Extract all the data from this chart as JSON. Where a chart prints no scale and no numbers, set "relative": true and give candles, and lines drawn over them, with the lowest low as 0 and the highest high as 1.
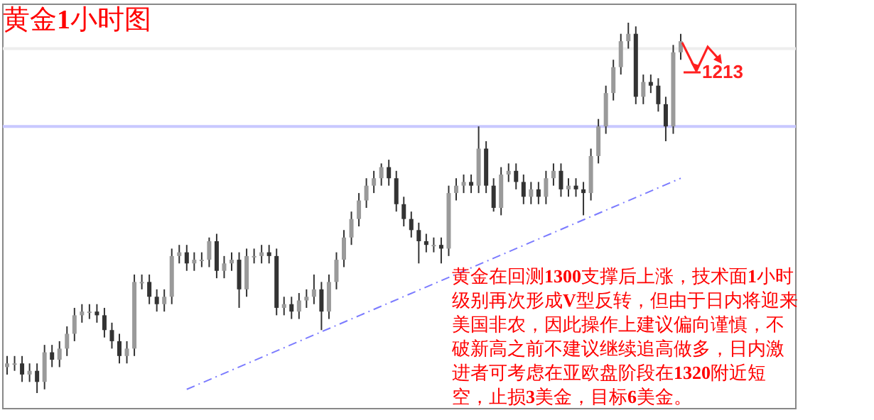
{
  "chart_data": {
    "type": "candlestick",
    "title": "黄金**1**小时图",
    "relative": true,
    "categories": [
      null,
      null,
      null,
      null,
      null,
      null,
      null,
      null,
      null,
      null,
      null,
      null,
      null,
      null,
      null,
      null,
      null,
      null,
      null,
      null,
      null,
      null,
      null,
      null,
      null,
      null,
      null,
      null,
      null,
      null,
      null,
      null,
      null,
      null,
      null,
      null,
      null,
      null,
      null,
      null,
      null,
      null,
      null,
      null,
      null,
      null,
      null,
      null,
      null,
      null,
      null,
      null,
      null,
      null,
      null,
      null,
      null,
      null,
      null,
      null,
      null,
      null,
      null,
      null,
      null,
      null,
      null,
      null,
      null,
      null,
      null,
      null,
      null,
      null,
      null,
      null,
      null,
      null,
      null,
      null,
      null,
      null,
      null,
      null,
      null,
      null,
      null,
      null,
      null,
      null,
      null
    ],
    "ohlc": [
      [
        0.07,
        0.1,
        0.05,
        0.08
      ],
      [
        0.08,
        0.1,
        0.06,
        0.08
      ],
      [
        0.08,
        0.1,
        0.03,
        0.05
      ],
      [
        0.05,
        0.08,
        0.03,
        0.06
      ],
      [
        0.06,
        0.08,
        0,
        0.03
      ],
      [
        0.03,
        0.13,
        0.01,
        0.11
      ],
      [
        0.11,
        0.13,
        0.07,
        0.09
      ],
      [
        0.09,
        0.14,
        0.07,
        0.12
      ],
      [
        0.12,
        0.18,
        0.1,
        0.16
      ],
      [
        0.16,
        0.23,
        0.14,
        0.21
      ],
      [
        0.21,
        0.24,
        0.19,
        0.22
      ],
      [
        0.22,
        0.24,
        0.2,
        0.22
      ],
      [
        0.22,
        0.24,
        0.19,
        0.21
      ],
      [
        0.21,
        0.23,
        0.15,
        0.17
      ],
      [
        0.17,
        0.19,
        0.12,
        0.14
      ],
      [
        0.14,
        0.16,
        0.08,
        0.1
      ],
      [
        0.1,
        0.14,
        0.08,
        0.12
      ],
      [
        0.12,
        0.32,
        0.1,
        0.3
      ],
      [
        0.3,
        0.32,
        0.28,
        0.3
      ],
      [
        0.3,
        0.32,
        0.24,
        0.26
      ],
      [
        0.26,
        0.28,
        0.22,
        0.24
      ],
      [
        0.24,
        0.28,
        0.22,
        0.26
      ],
      [
        0.26,
        0.39,
        0.24,
        0.37
      ],
      [
        0.37,
        0.4,
        0.35,
        0.38
      ],
      [
        0.38,
        0.4,
        0.33,
        0.35
      ],
      [
        0.35,
        0.38,
        0.33,
        0.36
      ],
      [
        0.36,
        0.38,
        0.34,
        0.36
      ],
      [
        0.36,
        0.42,
        0.34,
        0.41
      ],
      [
        0.41,
        0.43,
        0.31,
        0.33
      ],
      [
        0.33,
        0.37,
        0.31,
        0.35
      ],
      [
        0.35,
        0.38,
        0.33,
        0.36
      ],
      [
        0.36,
        0.38,
        0.23,
        0.28
      ],
      [
        0.28,
        0.39,
        0.26,
        0.37
      ],
      [
        0.37,
        0.39,
        0.35,
        0.37
      ],
      [
        0.37,
        0.4,
        0.35,
        0.38
      ],
      [
        0.38,
        0.4,
        0.35,
        0.37
      ],
      [
        0.37,
        0.39,
        0.21,
        0.23
      ],
      [
        0.23,
        0.26,
        0.21,
        0.24
      ],
      [
        0.24,
        0.26,
        0.2,
        0.22
      ],
      [
        0.22,
        0.27,
        0.2,
        0.25
      ],
      [
        0.25,
        0.28,
        0.23,
        0.26
      ],
      [
        0.26,
        0.32,
        0.24,
        0.28
      ],
      [
        0.28,
        0.3,
        0.17,
        0.22
      ],
      [
        0.22,
        0.32,
        0.2,
        0.3
      ],
      [
        0.3,
        0.38,
        0.28,
        0.36
      ],
      [
        0.36,
        0.44,
        0.34,
        0.42
      ],
      [
        0.42,
        0.49,
        0.4,
        0.47
      ],
      [
        0.47,
        0.54,
        0.45,
        0.52
      ],
      [
        0.52,
        0.58,
        0.5,
        0.56
      ],
      [
        0.56,
        0.6,
        0.54,
        0.58
      ],
      [
        0.58,
        0.62,
        0.56,
        0.61
      ],
      [
        0.61,
        0.63,
        0.56,
        0.58
      ],
      [
        0.58,
        0.6,
        0.49,
        0.51
      ],
      [
        0.51,
        0.53,
        0.45,
        0.47
      ],
      [
        0.47,
        0.49,
        0.42,
        0.44
      ],
      [
        0.44,
        0.46,
        0.35,
        0.41
      ],
      [
        0.41,
        0.43,
        0.38,
        0.4
      ],
      [
        0.4,
        0.42,
        0.38,
        0.4
      ],
      [
        0.4,
        0.42,
        0.35,
        0.39
      ],
      [
        0.39,
        0.56,
        0.37,
        0.54
      ],
      [
        0.54,
        0.58,
        0.52,
        0.56
      ],
      [
        0.56,
        0.59,
        0.54,
        0.57
      ],
      [
        0.57,
        0.59,
        0.54,
        0.56
      ],
      [
        0.56,
        0.72,
        0.54,
        0.66
      ],
      [
        0.66,
        0.68,
        0.54,
        0.56
      ],
      [
        0.56,
        0.58,
        0.49,
        0.5
      ],
      [
        0.5,
        0.61,
        0.48,
        0.59
      ],
      [
        0.59,
        0.62,
        0.57,
        0.6
      ],
      [
        0.6,
        0.62,
        0.55,
        0.57
      ],
      [
        0.57,
        0.59,
        0.51,
        0.53
      ],
      [
        0.53,
        0.57,
        0.51,
        0.55
      ],
      [
        0.55,
        0.57,
        0.51,
        0.53
      ],
      [
        0.53,
        0.6,
        0.51,
        0.58
      ],
      [
        0.58,
        0.62,
        0.56,
        0.6
      ],
      [
        0.6,
        0.62,
        0.53,
        0.55
      ],
      [
        0.55,
        0.58,
        0.53,
        0.56
      ],
      [
        0.56,
        0.58,
        0.53,
        0.55
      ],
      [
        0.55,
        0.57,
        0.48,
        0.54
      ],
      [
        0.54,
        0.66,
        0.52,
        0.64
      ],
      [
        0.64,
        0.74,
        0.62,
        0.72
      ],
      [
        0.72,
        0.83,
        0.7,
        0.81
      ],
      [
        0.81,
        0.9,
        0.79,
        0.88
      ],
      [
        0.88,
        0.97,
        0.86,
        0.95
      ],
      [
        0.95,
        1.0,
        0.93,
        0.97
      ],
      [
        0.97,
        0.99,
        0.78,
        0.8
      ],
      [
        0.8,
        0.86,
        0.78,
        0.84
      ],
      [
        0.84,
        0.86,
        0.81,
        0.83
      ],
      [
        0.83,
        0.85,
        0.76,
        0.78
      ],
      [
        0.78,
        0.8,
        0.68,
        0.72
      ],
      [
        0.72,
        0.94,
        0.7,
        0.92
      ],
      [
        0.92,
        0.97,
        0.9,
        0.95
      ]
    ],
    "series": [
      {
        "type": "line",
        "values": [
          null,
          null,
          null,
          null,
          null,
          null,
          null,
          null,
          null,
          null,
          null,
          null,
          null,
          null,
          null,
          null,
          null,
          null,
          null,
          null,
          null,
          null,
          null,
          null,
          0.01,
          null,
          null,
          null,
          null,
          null,
          null,
          null,
          null,
          null,
          null,
          null,
          null,
          null,
          null,
          null,
          null,
          null,
          null,
          null,
          null,
          null,
          null,
          null,
          null,
          null,
          null,
          null,
          null,
          null,
          null,
          null,
          null,
          null,
          null,
          null,
          null,
          null,
          null,
          null,
          null,
          null,
          null,
          null,
          null,
          null,
          null,
          null,
          null,
          null,
          null,
          null,
          null,
          null,
          null,
          null,
          null,
          null,
          null,
          null,
          null,
          null,
          null,
          null,
          null,
          null,
          0.58
        ],
        "color": "#7b7bff",
        "line_style": "dashed"
      }
    ],
    "ref_lines": [
      {
        "axis": "y",
        "value": 0.72,
        "color": "#c8c8ff"
      },
      {
        "axis": "y",
        "value": 0.93,
        "color": "#eeeeee"
      }
    ],
    "annotations": [
      "1213",
      "黄金在回测**1300**支撑后上涨，技术面**1**小时级别再次形成**V**型反转，但由于日内将迎来美国非农，因此操作上建议偏向谨慎，不破新高之前不建议继续追高做多，日内激进者可考虑在亚欧盘阶段在**1320**附近短空，止损**3**美金，目标**6**美金。"
    ]
  }
}
